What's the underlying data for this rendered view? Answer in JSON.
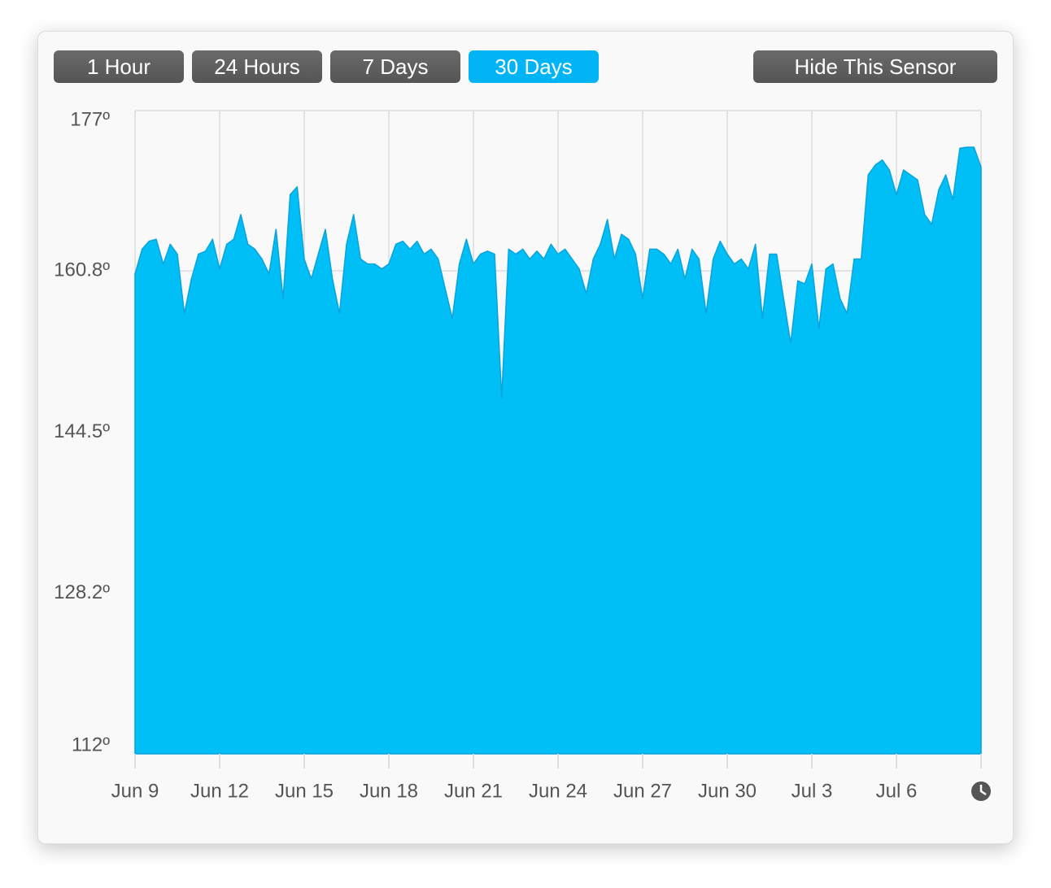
{
  "buttons": [
    {
      "label": "1 Hour"
    },
    {
      "label": "24 Hours"
    },
    {
      "label": "7 Days"
    },
    {
      "label": "30 Days",
      "active": true
    }
  ],
  "hide_button": "Hide This Sensor",
  "chart_data": {
    "type": "area",
    "color": "#00bef6",
    "x": [
      0,
      0.25,
      0.5,
      0.75,
      1,
      1.25,
      1.5,
      1.75,
      2,
      2.25,
      2.5,
      2.75,
      3,
      3.25,
      3.5,
      3.75,
      4,
      4.25,
      4.5,
      4.75,
      5,
      5.25,
      5.5,
      5.75,
      6,
      6.25,
      6.5,
      6.75,
      7,
      7.25,
      7.5,
      7.75,
      8,
      8.25,
      8.5,
      8.75,
      9,
      9.25,
      9.5,
      9.75,
      10,
      10.25,
      10.5,
      10.75,
      11,
      11.25,
      11.5,
      11.75,
      12,
      12.25,
      12.5,
      12.75,
      13,
      13.25,
      13.5,
      13.75,
      14,
      14.25,
      14.5,
      14.75,
      15,
      15.25,
      15.5,
      15.75,
      16,
      16.25,
      16.5,
      16.75,
      17,
      17.25,
      17.5,
      17.75,
      18,
      18.25,
      18.5,
      18.75,
      19,
      19.25,
      19.5,
      19.75,
      20,
      20.25,
      20.5,
      20.75,
      21,
      21.25,
      21.5,
      21.75,
      22,
      22.25,
      22.5,
      22.75,
      23,
      23.25,
      23.5,
      23.75,
      24,
      24.25,
      24.5,
      24.75,
      25,
      25.25,
      25.5,
      25.75,
      26,
      26.25,
      26.5,
      26.75,
      27,
      27.25,
      27.5,
      27.75,
      28,
      28.25,
      28.5,
      28.75,
      29,
      29.25,
      29.5,
      29.75,
      30
    ],
    "values": [
      160.5,
      163,
      163.8,
      164,
      161.5,
      163.5,
      162.5,
      156.5,
      160,
      162.5,
      162.8,
      164,
      161,
      163.5,
      164,
      166.5,
      163.5,
      163,
      162,
      160.5,
      165,
      158,
      168.5,
      169.3,
      162,
      160,
      162.5,
      165,
      160,
      156.5,
      163.5,
      166.5,
      162,
      161.5,
      161.5,
      161,
      161.5,
      163.5,
      163.8,
      163,
      163.8,
      162.5,
      163,
      162,
      159,
      156,
      161.5,
      164,
      161.5,
      162.5,
      162.8,
      162.5,
      148,
      163,
      162.5,
      163,
      162,
      162.8,
      162,
      163.5,
      162.5,
      163,
      162,
      161,
      158.5,
      162,
      163.5,
      166,
      162,
      164.5,
      164,
      162.5,
      158,
      163,
      163,
      162.5,
      161.5,
      163,
      160,
      163,
      162,
      156.5,
      162,
      163.8,
      162.5,
      161.5,
      162,
      161,
      163.5,
      156,
      162.5,
      162.5,
      158,
      153.5,
      159.8,
      159.5,
      161.5,
      155,
      161,
      161.5,
      158,
      156.5,
      162,
      162,
      170.5,
      171.5,
      172,
      171,
      168.5,
      171,
      170.5,
      170,
      166.5,
      165.5,
      169,
      170.5,
      168,
      173.2,
      173.3,
      173.3,
      171.3
    ],
    "xlim": [
      0,
      30
    ],
    "xticks": [
      {
        "value": 0,
        "label": "Jun 9"
      },
      {
        "value": 3,
        "label": "Jun 12"
      },
      {
        "value": 6,
        "label": "Jun 15"
      },
      {
        "value": 9,
        "label": "Jun 18"
      },
      {
        "value": 12,
        "label": "Jun 21"
      },
      {
        "value": 15,
        "label": "Jun 24"
      },
      {
        "value": 18,
        "label": "Jun 27"
      },
      {
        "value": 21,
        "label": "Jun 30"
      },
      {
        "value": 24,
        "label": "Jul 3"
      },
      {
        "value": 27,
        "label": "Jul 6"
      }
    ],
    "ylim": [
      112,
      177
    ],
    "yticks": [
      {
        "value": 112,
        "label": "112º"
      },
      {
        "value": 128.2,
        "label": "128.2º"
      },
      {
        "value": 144.5,
        "label": "144.5º"
      },
      {
        "value": 160.8,
        "label": "160.8º"
      },
      {
        "value": 177,
        "label": "177º"
      }
    ],
    "grid": true
  }
}
